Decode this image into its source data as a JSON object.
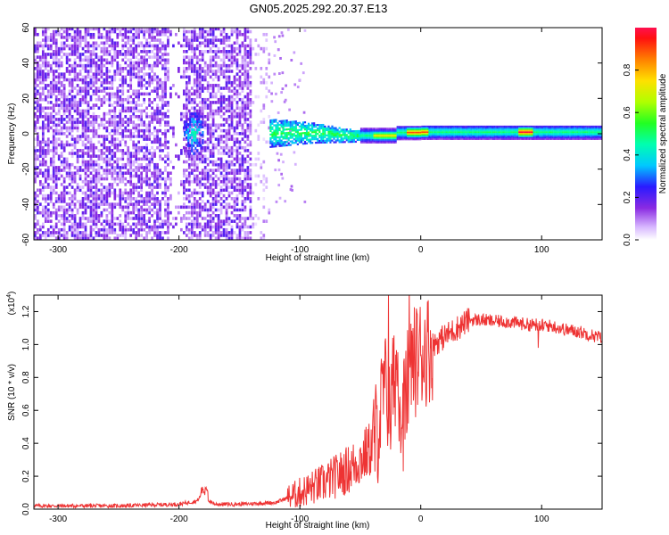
{
  "figure": {
    "title": "GN05.2025.292.20.37.E13"
  },
  "chart_data": [
    {
      "type": "heatmap",
      "name": "spectrogram",
      "title": "GN05.2025.292.20.37.E13",
      "xlabel": "Height of straight line (km)",
      "ylabel": "Frequency (Hz)",
      "xlim": [
        -320,
        150
      ],
      "ylim": [
        -60,
        60
      ],
      "xticks": [
        -300,
        -200,
        -100,
        0,
        100
      ],
      "yticks": [
        60,
        40,
        20,
        0,
        -20,
        -40,
        -60
      ],
      "colorbar": {
        "label": "Normalized spectral amplitude",
        "range": [
          0,
          1
        ],
        "ticks": [
          0.0,
          0.2,
          0.4,
          0.6,
          0.8
        ]
      },
      "features": [
        {
          "x_range": [
            -320,
            -125
          ],
          "freq_range": [
            -60,
            60
          ],
          "description": "broadband noise",
          "amplitude": 0.15
        },
        {
          "x_range": [
            -195,
            -180
          ],
          "freq_range": [
            -12,
            12
          ],
          "description": "burst",
          "amplitude": 0.35
        },
        {
          "x_range": [
            -125,
            -50
          ],
          "freq_range": [
            -8,
            8
          ],
          "description": "signal onset",
          "amplitude": 0.45
        },
        {
          "x_range": [
            -50,
            150
          ],
          "freq_range": [
            -3,
            3
          ],
          "description": "narrowband tone",
          "amplitude": 0.5
        },
        {
          "x_range": [
            80,
            90
          ],
          "freq_range": [
            -1,
            1
          ],
          "description": "peak",
          "amplitude": 0.95
        },
        {
          "x_range": [
            -10,
            5
          ],
          "freq_range": [
            -1,
            1
          ],
          "description": "peak",
          "amplitude": 0.9
        }
      ]
    },
    {
      "type": "line",
      "name": "snr",
      "xlabel": "Height of straight line (km)",
      "ylabel": "SNR (10 * v/v)",
      "yscale_label": "(x10",
      "yscale_exp": "4",
      "xlim": [
        -320,
        150
      ],
      "ylim": [
        0,
        1.3
      ],
      "xticks": [
        -300,
        -200,
        -100,
        0,
        100
      ],
      "yticks": [
        0.0,
        0.2,
        0.4,
        0.6,
        0.8,
        1.0,
        1.2
      ],
      "color": "#ee3333",
      "series": [
        {
          "name": "SNR",
          "x": [
            -320,
            -300,
            -250,
            -200,
            -185,
            -180,
            -175,
            -170,
            -150,
            -120,
            -110,
            -100,
            -90,
            -80,
            -70,
            -60,
            -50,
            -40,
            -35,
            -30,
            -25,
            -20,
            -15,
            -10,
            -5,
            0,
            10,
            20,
            30,
            40,
            50,
            60,
            70,
            80,
            90,
            100,
            110,
            120,
            130,
            140,
            150
          ],
          "y": [
            0.02,
            0.02,
            0.02,
            0.03,
            0.05,
            0.1,
            0.05,
            0.03,
            0.03,
            0.04,
            0.07,
            0.1,
            0.13,
            0.16,
            0.2,
            0.24,
            0.3,
            0.38,
            0.5,
            0.75,
            0.6,
            0.9,
            0.55,
            0.8,
            0.9,
            0.95,
            1.0,
            1.05,
            1.1,
            1.15,
            1.15,
            1.14,
            1.14,
            1.13,
            1.12,
            1.12,
            1.11,
            1.09,
            1.08,
            1.06,
            1.04
          ]
        }
      ]
    }
  ]
}
